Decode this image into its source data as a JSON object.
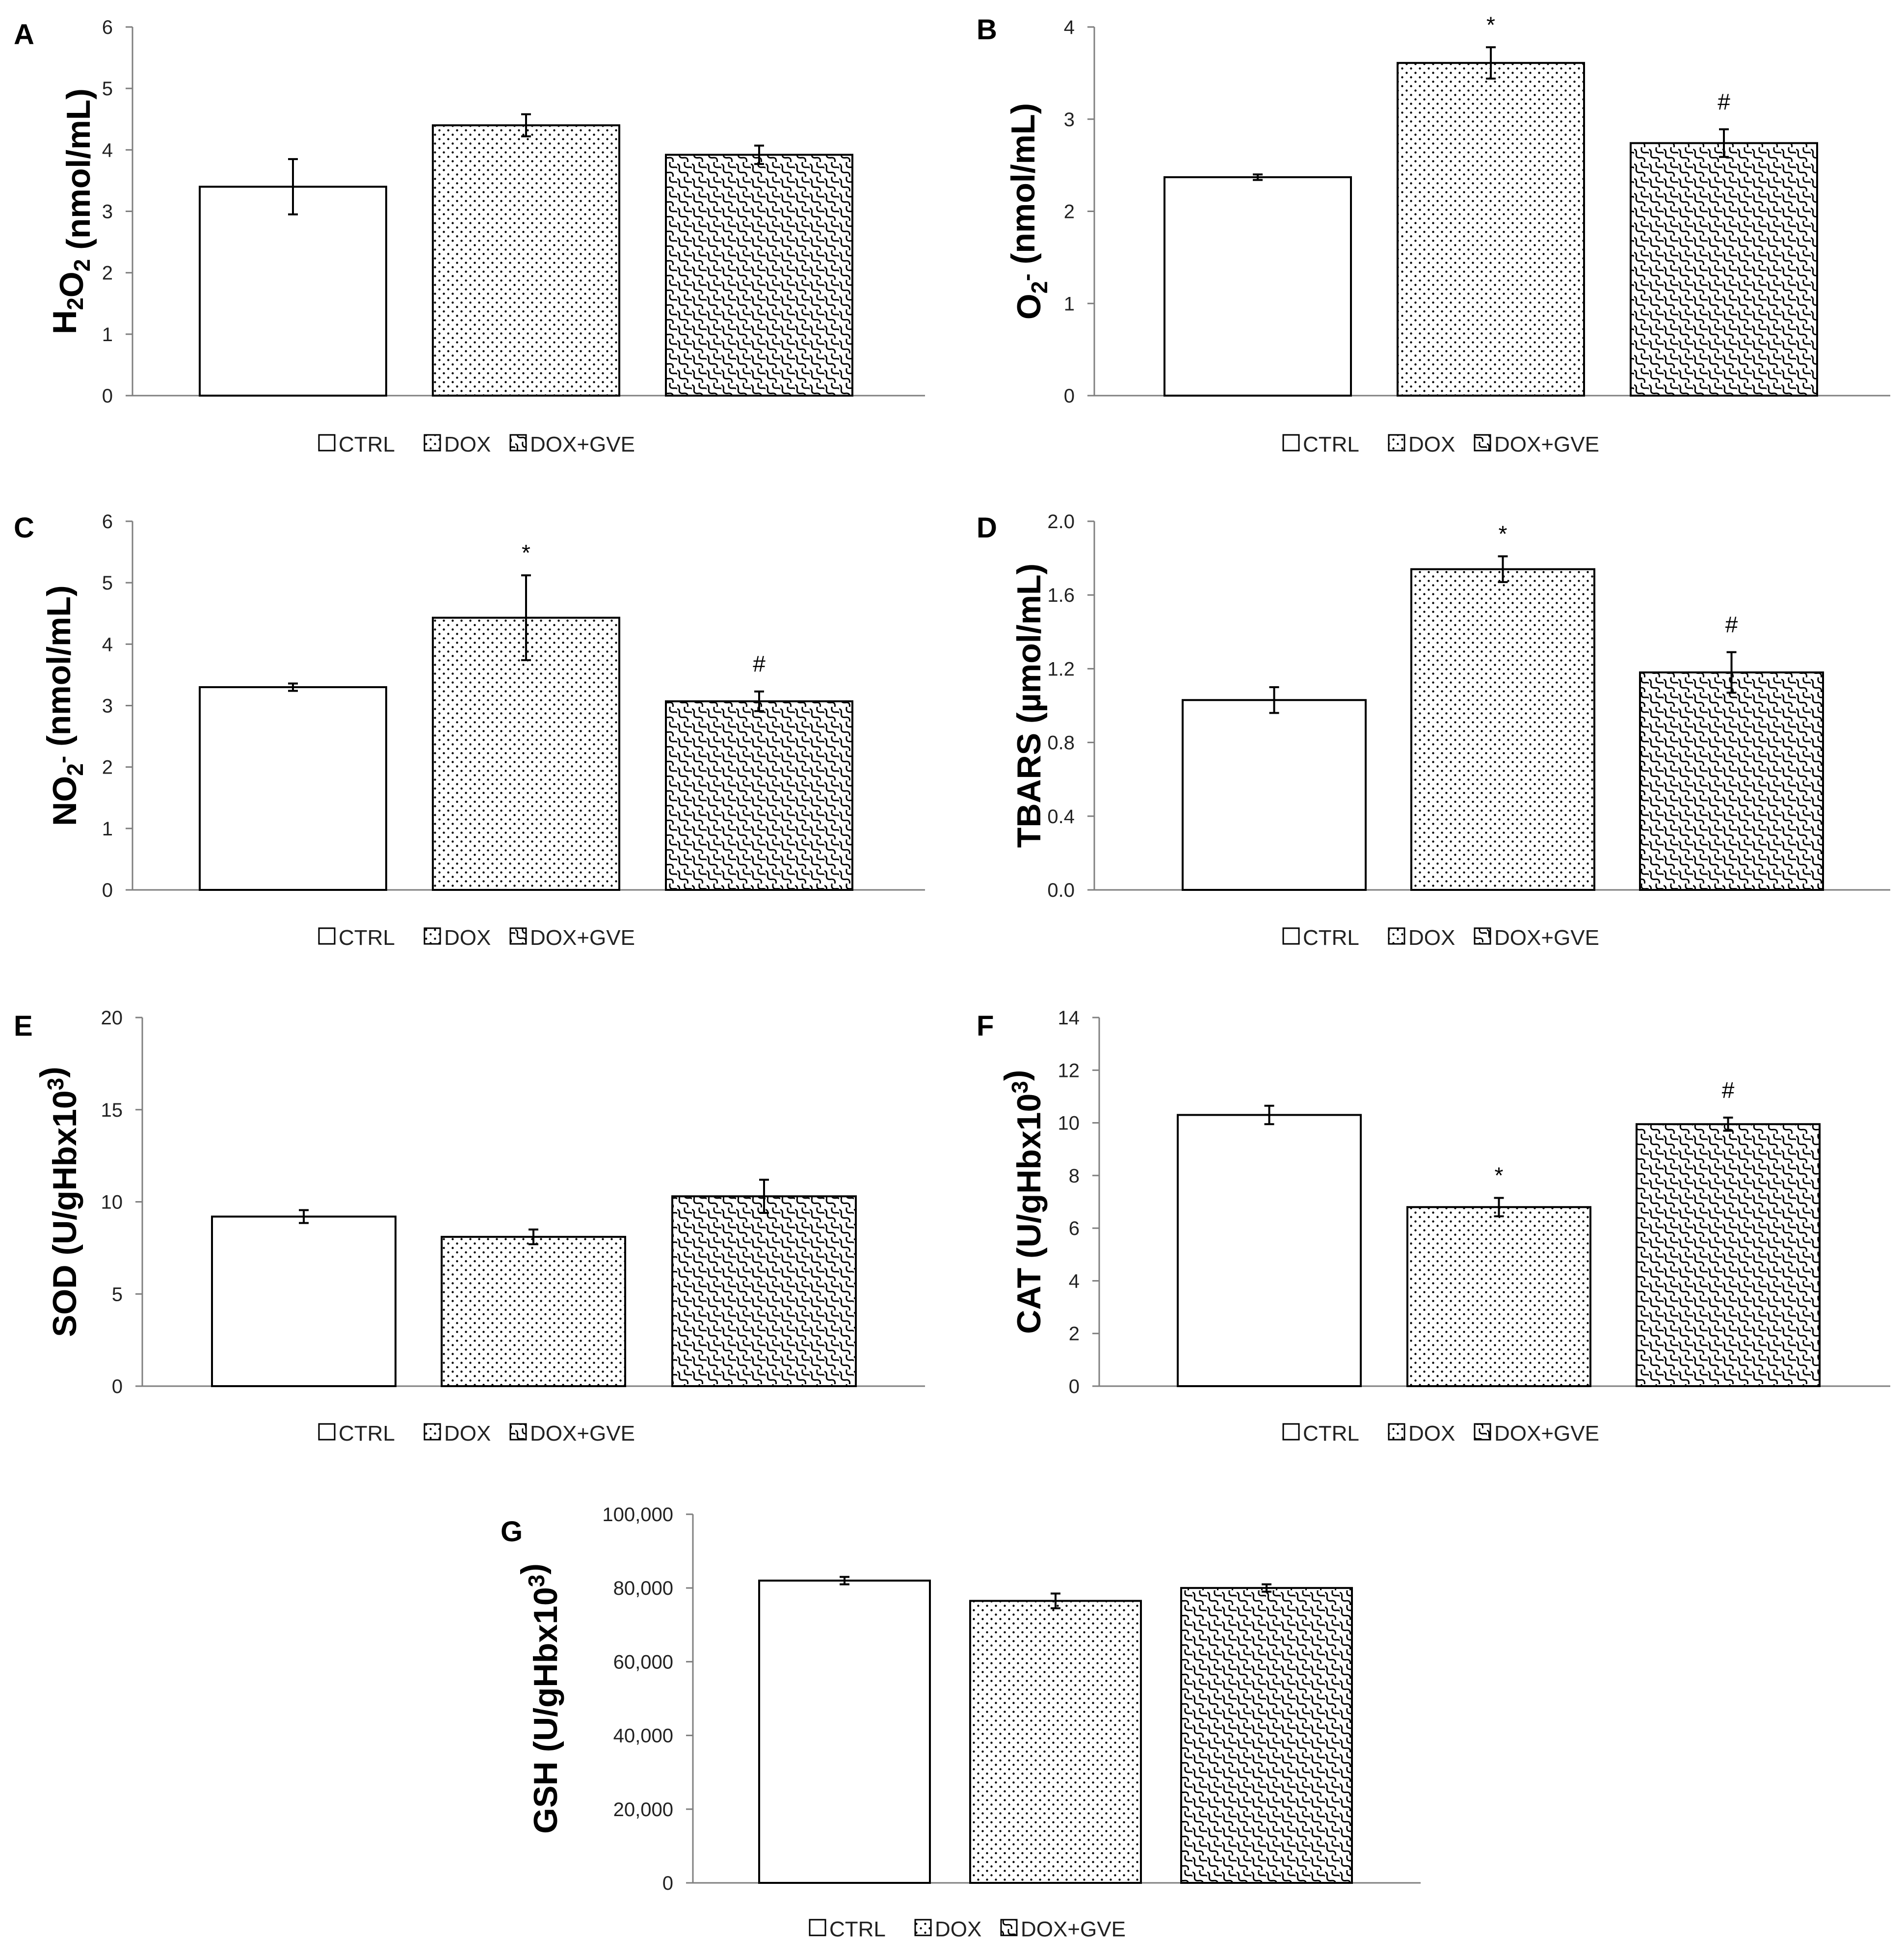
{
  "legend": [
    "CTRL",
    "DOX",
    "DOX+GVE"
  ],
  "colors": {
    "fill": "#ffffff",
    "ink": "#000000",
    "axis": "#7f7f7f"
  },
  "chart_data": [
    {
      "panel": "A",
      "type": "bar",
      "ylabel": "H",
      "ylabel_parts": [
        [
          "H",
          ""
        ],
        [
          "2",
          "sub"
        ],
        [
          "O",
          ""
        ],
        [
          "2",
          "sub"
        ],
        [
          " (nmol/mL)",
          ""
        ]
      ],
      "categories": [
        "CTRL",
        "DOX",
        "DOX+GVE"
      ],
      "values": [
        3.4,
        4.4,
        3.92
      ],
      "errors": [
        0.45,
        0.18,
        0.15
      ],
      "ylim": [
        0,
        6
      ],
      "ticks": [
        "0",
        "1",
        "2",
        "3",
        "4",
        "5",
        "6"
      ],
      "tick_values": [
        0,
        1,
        2,
        3,
        4,
        5,
        6
      ],
      "annotations": [
        "",
        "",
        ""
      ]
    },
    {
      "panel": "B",
      "type": "bar",
      "ylabel": "O",
      "ylabel_parts": [
        [
          "O",
          ""
        ],
        [
          "2",
          "sub"
        ],
        [
          "-",
          "sup"
        ],
        [
          " (nmol/mL)",
          ""
        ]
      ],
      "categories": [
        "CTRL",
        "DOX",
        "DOX+GVE"
      ],
      "values": [
        2.37,
        3.61,
        2.74
      ],
      "errors": [
        0.03,
        0.17,
        0.15
      ],
      "ylim": [
        0,
        4
      ],
      "ticks": [
        "0",
        "1",
        "2",
        "3",
        "4"
      ],
      "tick_values": [
        0,
        1,
        2,
        3,
        4
      ],
      "annotations": [
        "",
        "*",
        "#"
      ]
    },
    {
      "panel": "C",
      "type": "bar",
      "ylabel": "NO",
      "ylabel_parts": [
        [
          "NO",
          ""
        ],
        [
          "2",
          "sub"
        ],
        [
          "-",
          "sup"
        ],
        [
          " (nmol/mL)",
          ""
        ]
      ],
      "categories": [
        "CTRL",
        "DOX",
        "DOX+GVE"
      ],
      "values": [
        3.3,
        4.43,
        3.07
      ],
      "errors": [
        0.06,
        0.69,
        0.16
      ],
      "ylim": [
        0,
        6
      ],
      "ticks": [
        "0",
        "1",
        "2",
        "3",
        "4",
        "5",
        "6"
      ],
      "tick_values": [
        0,
        1,
        2,
        3,
        4,
        5,
        6
      ],
      "annotations": [
        "",
        "*",
        "#"
      ]
    },
    {
      "panel": "D",
      "type": "bar",
      "ylabel": "TBARS",
      "ylabel_parts": [
        [
          "TBARS (µmol/mL)",
          ""
        ]
      ],
      "categories": [
        "CTRL",
        "DOX",
        "DOX+GVE"
      ],
      "values": [
        1.03,
        1.74,
        1.18
      ],
      "errors": [
        0.07,
        0.07,
        0.11
      ],
      "ylim": [
        0,
        2
      ],
      "ticks": [
        "0.0",
        "0.4",
        "0.8",
        "1.2",
        "1.6",
        "2.0"
      ],
      "tick_values": [
        0,
        0.4,
        0.8,
        1.2,
        1.6,
        2.0
      ],
      "annotations": [
        "",
        "*",
        "#"
      ]
    },
    {
      "panel": "E",
      "type": "bar",
      "ylabel": "SOD",
      "ylabel_parts": [
        [
          "SOD (U/gHbx10",
          ""
        ],
        [
          "3",
          "sup"
        ],
        [
          ")",
          ""
        ]
      ],
      "categories": [
        "CTRL",
        "DOX",
        "DOX+GVE"
      ],
      "values": [
        9.2,
        8.1,
        10.3
      ],
      "errors": [
        0.35,
        0.4,
        0.9
      ],
      "ylim": [
        0,
        20
      ],
      "ticks": [
        "0",
        "5",
        "10",
        "15",
        "20"
      ],
      "tick_values": [
        0,
        5,
        10,
        15,
        20
      ],
      "annotations": [
        "",
        "",
        ""
      ]
    },
    {
      "panel": "F",
      "type": "bar",
      "ylabel": "CAT",
      "ylabel_parts": [
        [
          "CAT (U/gHbx10",
          ""
        ],
        [
          "3",
          "sup"
        ],
        [
          ")",
          ""
        ]
      ],
      "categories": [
        "CTRL",
        "DOX",
        "DOX+GVE"
      ],
      "values": [
        10.3,
        6.8,
        9.95
      ],
      "errors": [
        0.35,
        0.35,
        0.25
      ],
      "ylim": [
        0,
        14
      ],
      "ticks": [
        "0",
        "2",
        "4",
        "6",
        "8",
        "10",
        "12",
        "14"
      ],
      "tick_values": [
        0,
        2,
        4,
        6,
        8,
        10,
        12,
        14
      ],
      "annotations": [
        "",
        "*",
        "#"
      ]
    },
    {
      "panel": "G",
      "type": "bar",
      "ylabel": "GSH",
      "ylabel_parts": [
        [
          "GSH (U/gHbx10",
          ""
        ],
        [
          "3",
          "sup"
        ],
        [
          ")",
          ""
        ]
      ],
      "categories": [
        "CTRL",
        "DOX",
        "DOX+GVE"
      ],
      "values": [
        82000,
        76500,
        80000
      ],
      "errors": [
        1000,
        2000,
        1000
      ],
      "ylim": [
        0,
        100000
      ],
      "ticks": [
        "0",
        "20,000",
        "40,000",
        "60,000",
        "80,000",
        "100,000"
      ],
      "tick_values": [
        0,
        20000,
        40000,
        60000,
        80000,
        100000
      ],
      "annotations": [
        "",
        "",
        ""
      ]
    }
  ]
}
